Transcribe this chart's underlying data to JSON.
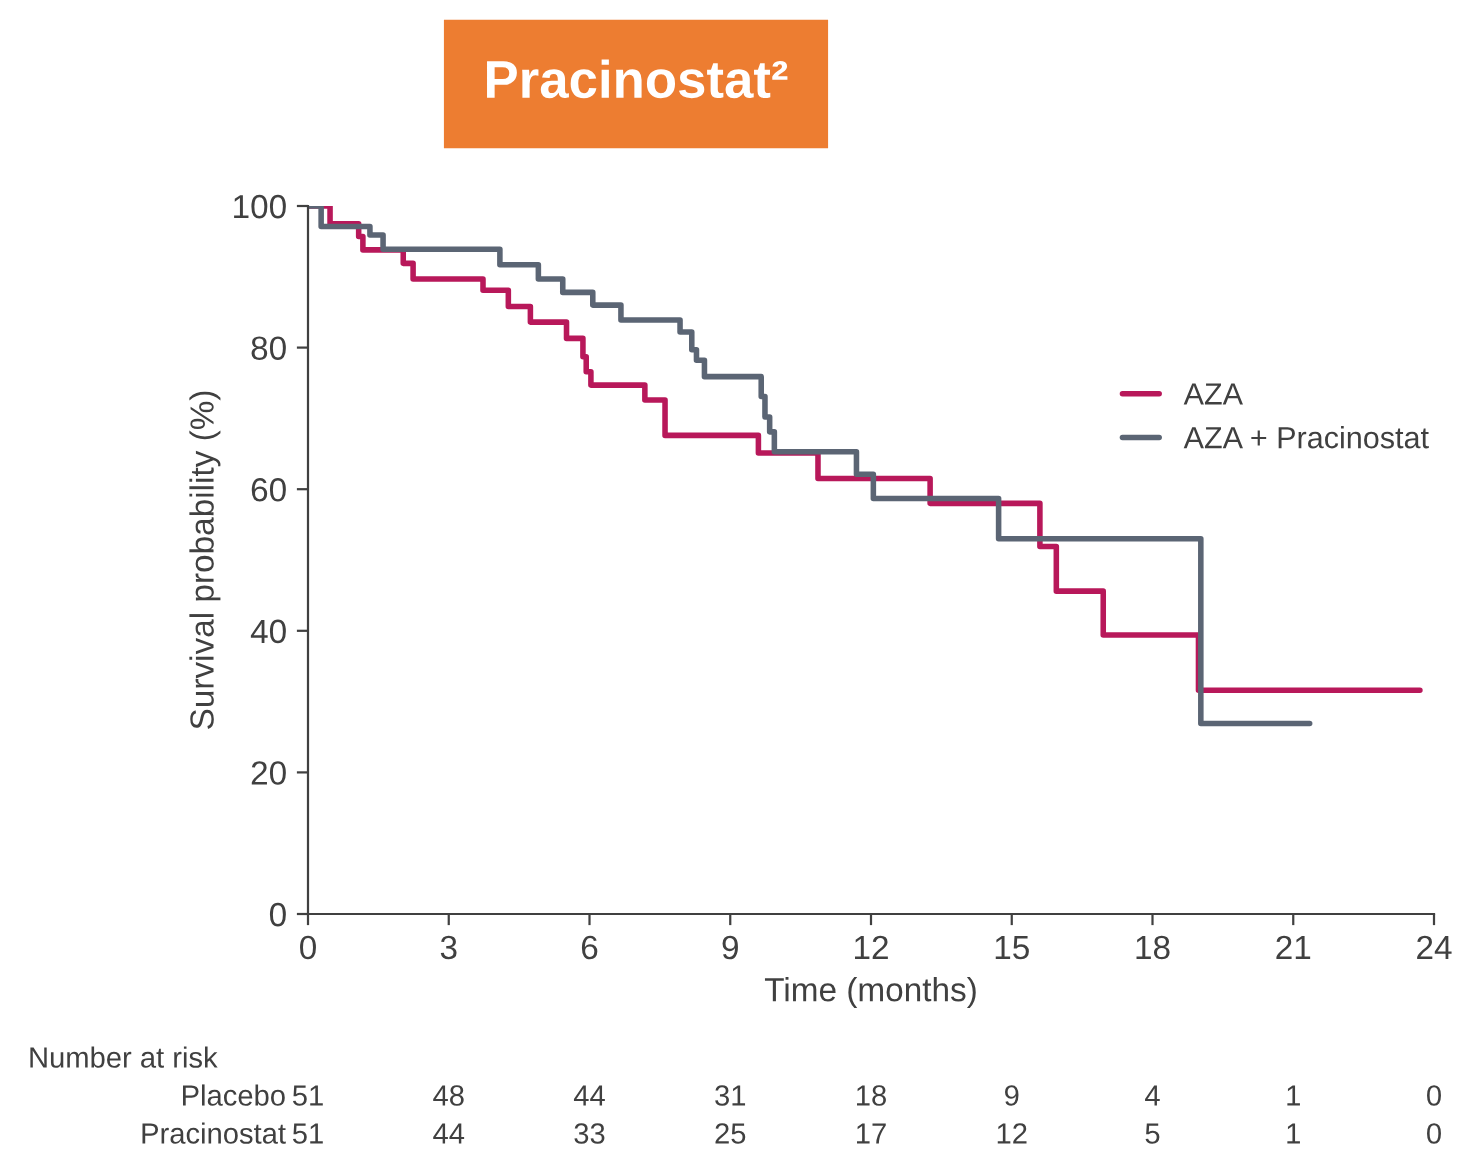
{
  "chart_data": {
    "type": "step",
    "title": "Pracinostat²",
    "xlabel": "Time (months)",
    "ylabel": "Survival probability (%)",
    "series": [
      {
        "name": "AZA",
        "color": "#b8185a",
        "x": [
          0,
          0.47,
          1.08,
          1.17,
          2.03,
          2.24,
          3.73,
          4.27,
          4.74,
          5.51,
          5.86,
          5.93,
          6.03,
          7.18,
          7.61,
          9.6,
          10.87,
          13.26,
          15.6,
          15.95,
          16.95,
          18.98,
          23.7
        ],
        "values": [
          100,
          97.5,
          95.7,
          93.8,
          91.9,
          89.7,
          88.1,
          85.8,
          83.6,
          81.3,
          78.7,
          76.6,
          74.7,
          72.6,
          67.6,
          65.1,
          61.5,
          58.0,
          51.9,
          45.6,
          39.4,
          31.6,
          31.6
        ]
      },
      {
        "name": "AZA + Pracinostat",
        "color": "#5b6574",
        "x": [
          0,
          0.28,
          1.32,
          1.6,
          4.09,
          4.91,
          5.43,
          6.07,
          6.67,
          7.93,
          8.18,
          8.28,
          8.45,
          9.66,
          9.74,
          9.84,
          9.94,
          11.69,
          12.05,
          14.72,
          19.03,
          21.35
        ],
        "values": [
          100,
          97.1,
          95.9,
          93.9,
          91.7,
          89.7,
          87.8,
          86.0,
          83.9,
          82.2,
          79.7,
          78.2,
          75.9,
          73.1,
          70.2,
          68.1,
          65.3,
          62.1,
          58.7,
          53.0,
          26.9,
          26.9
        ]
      }
    ],
    "xlim": [
      0,
      24
    ],
    "xticks": [
      0,
      3,
      6,
      9,
      12,
      15,
      18,
      21,
      24
    ],
    "ylim": [
      0,
      100
    ],
    "yticks": [
      0,
      20,
      40,
      60,
      80,
      100
    ],
    "grid": false,
    "legend": "right",
    "line_style": "solid",
    "annotations": [
      "Number at risk",
      "Placebo",
      "51",
      "48",
      "44",
      "31",
      "18",
      "9",
      "4",
      "1",
      "0",
      "Pracinostat",
      "51",
      "44",
      "33",
      "25",
      "17",
      "12",
      "5",
      "1",
      "0"
    ]
  }
}
